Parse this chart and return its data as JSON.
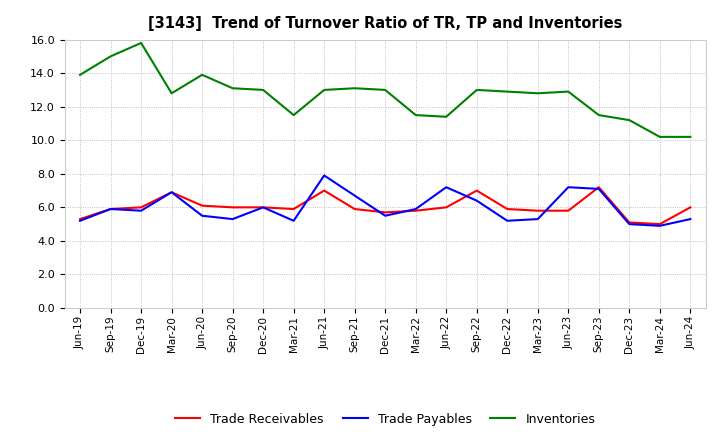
{
  "title": "[3143]  Trend of Turnover Ratio of TR, TP and Inventories",
  "x_labels": [
    "Jun-19",
    "Sep-19",
    "Dec-19",
    "Mar-20",
    "Jun-20",
    "Sep-20",
    "Dec-20",
    "Mar-21",
    "Jun-21",
    "Sep-21",
    "Dec-21",
    "Mar-22",
    "Jun-22",
    "Sep-22",
    "Dec-22",
    "Mar-23",
    "Jun-23",
    "Sep-23",
    "Dec-23",
    "Mar-24",
    "Jun-24"
  ],
  "trade_receivables": [
    5.3,
    5.9,
    6.0,
    6.9,
    6.1,
    6.0,
    6.0,
    5.9,
    7.0,
    5.9,
    5.7,
    5.8,
    6.0,
    7.0,
    5.9,
    5.8,
    5.8,
    7.2,
    5.1,
    5.0,
    6.0
  ],
  "trade_payables": [
    5.2,
    5.9,
    5.8,
    6.9,
    5.5,
    5.3,
    6.0,
    5.2,
    7.9,
    6.7,
    5.5,
    5.9,
    7.2,
    6.4,
    5.2,
    5.3,
    7.2,
    7.1,
    5.0,
    4.9,
    5.3
  ],
  "inventories": [
    13.9,
    15.0,
    15.8,
    12.8,
    13.9,
    13.1,
    13.0,
    11.5,
    13.0,
    13.1,
    13.0,
    11.5,
    11.4,
    13.0,
    12.9,
    12.8,
    12.9,
    11.5,
    11.2,
    10.2,
    10.2
  ],
  "ylim": [
    0.0,
    16.0
  ],
  "yticks": [
    0.0,
    2.0,
    4.0,
    6.0,
    8.0,
    10.0,
    12.0,
    14.0,
    16.0
  ],
  "tr_color": "#ff0000",
  "tp_color": "#0000ff",
  "inv_color": "#008000",
  "legend_labels": [
    "Trade Receivables",
    "Trade Payables",
    "Inventories"
  ],
  "bg_color": "#ffffff",
  "grid_color": "#b0b0b0"
}
